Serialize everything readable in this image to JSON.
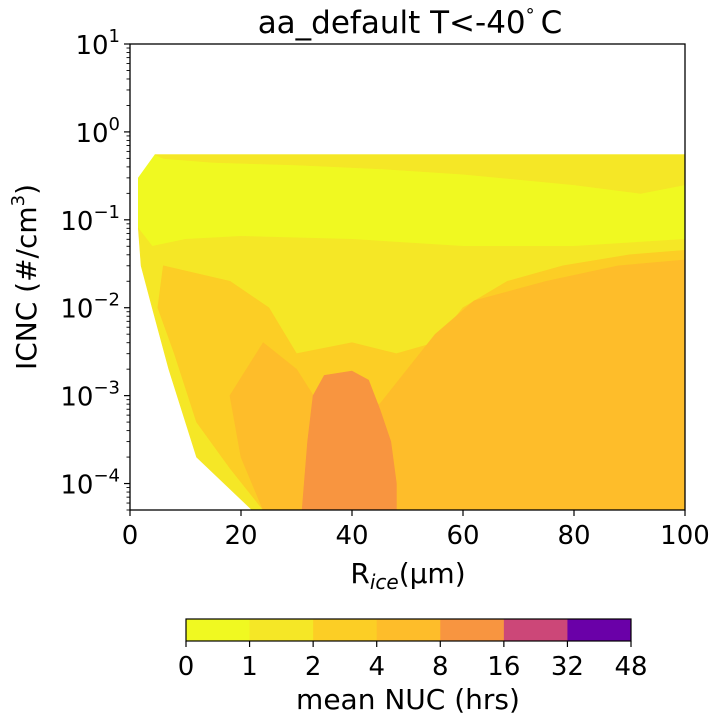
{
  "chart_data": {
    "type": "contour",
    "title": "aa_default T<-40 °C",
    "title_parts": {
      "text": "aa_default T<-40",
      "degree": "°",
      "unit": "C"
    },
    "xlabel": "R",
    "xlabel_sub": "ice",
    "xlabel_unit": "(μm)",
    "ylabel": "ICNC (#/cm",
    "ylabel_sup": "3",
    "ylabel_end": ")",
    "xlim": [
      0,
      100
    ],
    "ylim": [
      5e-05,
      10
    ],
    "yscale": "log",
    "x_ticks": [
      0,
      20,
      40,
      60,
      80,
      100
    ],
    "x_tick_labels": [
      "0",
      "20",
      "40",
      "60",
      "80",
      "100"
    ],
    "y_ticks": [
      {
        "value": 10,
        "base": "10",
        "exp": "1"
      },
      {
        "value": 1,
        "base": "10",
        "exp": "0"
      },
      {
        "value": 0.1,
        "base": "10",
        "exp": "−1"
      },
      {
        "value": 0.01,
        "base": "10",
        "exp": "−2"
      },
      {
        "value": 0.001,
        "base": "10",
        "exp": "−3"
      },
      {
        "value": 0.0001,
        "base": "10",
        "exp": "−4"
      }
    ],
    "colorbar": {
      "label": "mean NUC (hrs)",
      "levels": [
        "0",
        "1",
        "2",
        "4",
        "8",
        "16",
        "32",
        "48"
      ],
      "colors": [
        "#f0f921",
        "#f5e726",
        "#fcce25",
        "#febd2a",
        "#f89540",
        "#cc4778",
        "#6a00a8"
      ]
    },
    "regions": [
      {
        "name": "0-1 hrs",
        "color": "#f0f921",
        "points": [
          [
            1.5,
            0.3
          ],
          [
            4.5,
            0.55
          ],
          [
            100,
            0.55
          ],
          [
            100,
            0.06
          ],
          [
            80,
            0.05
          ],
          [
            60,
            0.05
          ],
          [
            40,
            0.06
          ],
          [
            20,
            0.065
          ],
          [
            10,
            0.06
          ],
          [
            4,
            0.05
          ],
          [
            1.5,
            0.08
          ]
        ]
      },
      {
        "name": "1-2 hrs",
        "color": "#f5e726",
        "points": [
          [
            4.5,
            0.55
          ],
          [
            100,
            0.55
          ],
          [
            100,
            0.25
          ],
          [
            92,
            0.2
          ],
          [
            80,
            0.25
          ],
          [
            60,
            0.33
          ],
          [
            45,
            0.38
          ],
          [
            30,
            0.42
          ],
          [
            15,
            0.45
          ],
          [
            6,
            0.5
          ]
        ]
      },
      {
        "name": "1-2 hrs lower",
        "color": "#f5e726",
        "points": [
          [
            1.5,
            0.08
          ],
          [
            4,
            0.05
          ],
          [
            10,
            0.06
          ],
          [
            20,
            0.065
          ],
          [
            40,
            0.06
          ],
          [
            60,
            0.05
          ],
          [
            80,
            0.05
          ],
          [
            100,
            0.06
          ],
          [
            100,
            5e-05
          ],
          [
            22,
            5e-05
          ],
          [
            12,
            0.0002
          ],
          [
            7,
            0.002
          ],
          [
            4,
            0.01
          ],
          [
            2,
            0.03
          ]
        ]
      },
      {
        "name": "2-4 hrs",
        "color": "#fcce25",
        "points": [
          [
            6,
            0.03
          ],
          [
            18,
            0.02
          ],
          [
            25,
            0.01
          ],
          [
            30,
            0.003
          ],
          [
            40,
            0.004
          ],
          [
            48,
            0.003
          ],
          [
            55,
            0.004
          ],
          [
            60,
            0.01
          ],
          [
            68,
            0.02
          ],
          [
            78,
            0.03
          ],
          [
            90,
            0.04
          ],
          [
            100,
            0.045
          ],
          [
            100,
            5e-05
          ],
          [
            24,
            5e-05
          ],
          [
            18,
            0.00015
          ],
          [
            12,
            0.0005
          ],
          [
            8,
            0.003
          ],
          [
            5,
            0.01
          ]
        ]
      },
      {
        "name": "4-8 hrs",
        "color": "#febd2a",
        "points": [
          [
            24,
            0.004
          ],
          [
            30,
            0.002
          ],
          [
            34,
            0.0008
          ],
          [
            45,
            0.0008
          ],
          [
            50,
            0.002
          ],
          [
            55,
            0.005
          ],
          [
            62,
            0.012
          ],
          [
            75,
            0.02
          ],
          [
            88,
            0.03
          ],
          [
            100,
            0.035
          ],
          [
            100,
            5e-05
          ],
          [
            24,
            5e-05
          ],
          [
            20,
            0.0002
          ],
          [
            18,
            0.001
          ]
        ]
      },
      {
        "name": "8-16 hrs",
        "color": "#f89540",
        "points": [
          [
            31,
            5e-05
          ],
          [
            32,
            0.0003
          ],
          [
            33,
            0.001
          ],
          [
            35,
            0.0017
          ],
          [
            40,
            0.0019
          ],
          [
            43,
            0.0015
          ],
          [
            45,
            0.0007
          ],
          [
            47,
            0.0003
          ],
          [
            48,
            0.0001
          ],
          [
            48,
            5e-05
          ]
        ]
      }
    ]
  }
}
